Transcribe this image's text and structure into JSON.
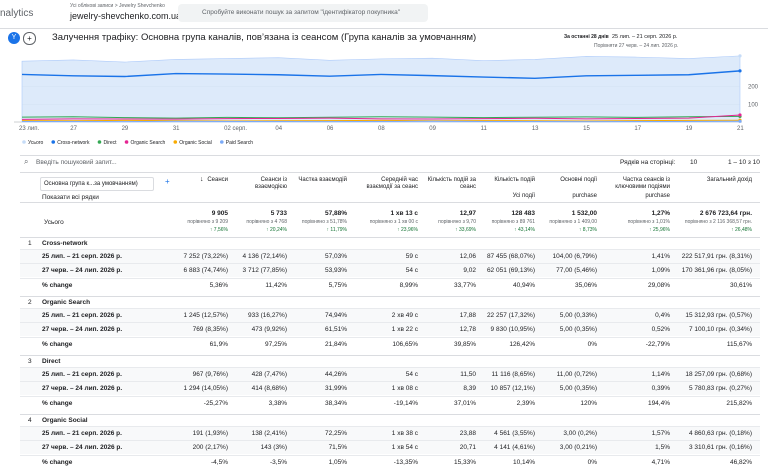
{
  "header": {
    "app": "nalytics",
    "breadcrumb": "Усі облікові записи > Jewelry Shevchenko",
    "property": "jewelry-shevchenko.com.ua...",
    "search_placeholder": "Спробуйте виконати пошук за запитом \"ідентифікатор покупника\""
  },
  "report": {
    "avatar": "Y",
    "title": "Залучення трафіку: Основна група каналів, пов’язана із сеансом (Група каналів за умовчанням)",
    "date_label": "За останні 28 днів",
    "date_range": "25 лип. – 21 серп. 2026 р.",
    "compare_range": "Порівняти 27 черв. – 24 лип. 2026 р."
  },
  "chart_data": {
    "type": "line",
    "categories": [
      "23 лип.",
      "27",
      "29",
      "31",
      "02 серп.",
      "04",
      "06",
      "08",
      "09",
      "11",
      "13",
      "15",
      "17",
      "19",
      "21"
    ],
    "ylim": [
      0,
      380
    ],
    "yticks": [
      100,
      200
    ],
    "series": [
      {
        "name": "Усього",
        "color": "#c6dcf7",
        "values": [
          345,
          352,
          340,
          355,
          360,
          365,
          350,
          358,
          362,
          348,
          355,
          372,
          368,
          360,
          375
        ]
      },
      {
        "name": "Cross-network",
        "color": "#1a73e8",
        "values": [
          270,
          262,
          258,
          275,
          272,
          268,
          260,
          270,
          263,
          255,
          248,
          262,
          265,
          268,
          290
        ]
      },
      {
        "name": "Direct",
        "color": "#34a853",
        "values": [
          28,
          30,
          25,
          22,
          26,
          24,
          27,
          30,
          28,
          25,
          27,
          29,
          26,
          30,
          32
        ]
      },
      {
        "name": "Organic Search",
        "color": "#e52592",
        "values": [
          15,
          18,
          17,
          16,
          19,
          20,
          22,
          18,
          17,
          19,
          21,
          18,
          20,
          22,
          40
        ]
      },
      {
        "name": "Organic Social",
        "color": "#f9ab00",
        "values": [
          8,
          7,
          9,
          8,
          6,
          7,
          8,
          9,
          7,
          8,
          7,
          6,
          8,
          9,
          10
        ]
      },
      {
        "name": "Paid Search",
        "color": "#7baaf7",
        "values": [
          3,
          3,
          2,
          4,
          3,
          3,
          2,
          3,
          4,
          3,
          3,
          2,
          3,
          3,
          4
        ]
      }
    ]
  },
  "table": {
    "search_placeholder": "Введіть пошуковий запит...",
    "rows_per_page_label": "Рядків на сторінці:",
    "rows_per_page": "10",
    "pagination": "1 – 10 з 10",
    "dimension": "Основна група к...за умовчанням)",
    "show_all_rows": "Показати всі рядки",
    "columns": [
      {
        "title": "Сеанси"
      },
      {
        "title": "Сеанси із взаємодією"
      },
      {
        "title": "Частка взаємодій"
      },
      {
        "title": "Середній час взаємодії за сеанс"
      },
      {
        "title": "Кількість подій за сеанс"
      },
      {
        "title": "Кількість подій",
        "sub": "Усі події"
      },
      {
        "title": "Основні події",
        "sub": "purchase"
      },
      {
        "title": "Частка сеансів із ключовими подіями",
        "sub": "purchase"
      },
      {
        "title": "Загальний дохід"
      }
    ],
    "totals": {
      "label": "Усього",
      "cells": [
        {
          "value": "9 905",
          "compare": "порівняно з 9 209",
          "change": "↑ 7,56%"
        },
        {
          "value": "5 733",
          "compare": "порівняно з 4 768",
          "change": "↑ 20,24%"
        },
        {
          "value": "57,88%",
          "compare": "порівняно з 51,78%",
          "change": "↑ 11,79%"
        },
        {
          "value": "1 хв 13 с",
          "compare": "порівняно з 1 хв 00 с",
          "change": "↑ 23,96%"
        },
        {
          "value": "12,97",
          "compare": "порівняно з 9,70",
          "change": "↑ 33,69%"
        },
        {
          "value": "128 483",
          "compare": "порівняно з 89 761",
          "change": "↑ 43,14%"
        },
        {
          "value": "1 532,00",
          "compare": "порівняно з 1 409,00",
          "change": "↑ 8,73%"
        },
        {
          "value": "1,27%",
          "compare": "порівняно з 1,01%",
          "change": "↑ 25,96%"
        },
        {
          "value": "2 676 723,64 грн.",
          "compare": "порівняно з 2 116 368,57 грн.",
          "change": "↑ 26,48%"
        }
      ]
    },
    "groups": [
      {
        "index": "1",
        "name": "Cross-network",
        "rows": [
          {
            "label": "25 лип. – 21 серп. 2026 р.",
            "cells": [
              "7 252 (73,22%)",
              "4 136 (72,14%)",
              "57,03%",
              "59 с",
              "12,06",
              "87 455 (68,07%)",
              "104,00 (6,79%)",
              "1,41%",
              "222 517,91 грн. (8,31%)"
            ]
          },
          {
            "label": "27 черв. – 24 лип. 2026 р.",
            "cells": [
              "6 883 (74,74%)",
              "3 712 (77,85%)",
              "53,93%",
              "54 с",
              "9,02",
              "62 051 (69,13%)",
              "77,00 (5,46%)",
              "1,09%",
              "170 361,96 грн. (8,05%)"
            ]
          },
          {
            "label": "% change",
            "cells": [
              "5,36%",
              "11,42%",
              "5,75%",
              "8,99%",
              "33,77%",
              "40,94%",
              "35,06%",
              "29,08%",
              "30,61%"
            ]
          }
        ]
      },
      {
        "index": "2",
        "name": "Organic Search",
        "rows": [
          {
            "label": "25 лип. – 21 серп. 2026 р.",
            "cells": [
              "1 245 (12,57%)",
              "933 (16,27%)",
              "74,94%",
              "2 хв 49 с",
              "17,88",
              "22 257 (17,32%)",
              "5,00 (0,33%)",
              "0,4%",
              "15 312,93 грн. (0,57%)"
            ]
          },
          {
            "label": "27 черв. – 24 лип. 2026 р.",
            "cells": [
              "769 (8,35%)",
              "473 (9,92%)",
              "61,51%",
              "1 хв 22 с",
              "12,78",
              "9 830 (10,95%)",
              "5,00 (0,35%)",
              "0,52%",
              "7 100,10 грн. (0,34%)"
            ]
          },
          {
            "label": "% change",
            "cells": [
              "61,9%",
              "97,25%",
              "21,84%",
              "106,65%",
              "39,85%",
              "126,42%",
              "0%",
              "-22,79%",
              "115,67%"
            ]
          }
        ]
      },
      {
        "index": "3",
        "name": "Direct",
        "rows": [
          {
            "label": "25 лип. – 21 серп. 2026 р.",
            "cells": [
              "967 (9,76%)",
              "428 (7,47%)",
              "44,26%",
              "54 с",
              "11,50",
              "11 116 (8,65%)",
              "11,00 (0,72%)",
              "1,14%",
              "18 257,09 грн. (0,68%)"
            ]
          },
          {
            "label": "27 черв. – 24 лип. 2026 р.",
            "cells": [
              "1 294 (14,05%)",
              "414 (8,68%)",
              "31,99%",
              "1 хв 08 с",
              "8,39",
              "10 857 (12,1%)",
              "5,00 (0,35%)",
              "0,39%",
              "5 780,83 грн. (0,27%)"
            ]
          },
          {
            "label": "% change",
            "cells": [
              "-25,27%",
              "3,38%",
              "38,34%",
              "-19,14%",
              "37,01%",
              "2,39%",
              "120%",
              "194,4%",
              "215,82%"
            ]
          }
        ]
      },
      {
        "index": "4",
        "name": "Organic Social",
        "rows": [
          {
            "label": "25 лип. – 21 серп. 2026 р.",
            "cells": [
              "191 (1,93%)",
              "138 (2,41%)",
              "72,25%",
              "1 хв 38 с",
              "23,88",
              "4 561 (3,55%)",
              "3,00 (0,2%)",
              "1,57%",
              "4 860,63 грн. (0,18%)"
            ]
          },
          {
            "label": "27 черв. – 24 лип. 2026 р.",
            "cells": [
              "200 (2,17%)",
              "143 (3%)",
              "71,5%",
              "1 хв 54 с",
              "20,71",
              "4 141 (4,61%)",
              "3,00 (0,21%)",
              "1,5%",
              "3 310,61 грн. (0,16%)"
            ]
          },
          {
            "label": "% change",
            "cells": [
              "-4,5%",
              "-3,5%",
              "1,05%",
              "-13,35%",
              "15,33%",
              "10,14%",
              "0%",
              "4,71%",
              "46,82%"
            ]
          }
        ]
      }
    ]
  }
}
